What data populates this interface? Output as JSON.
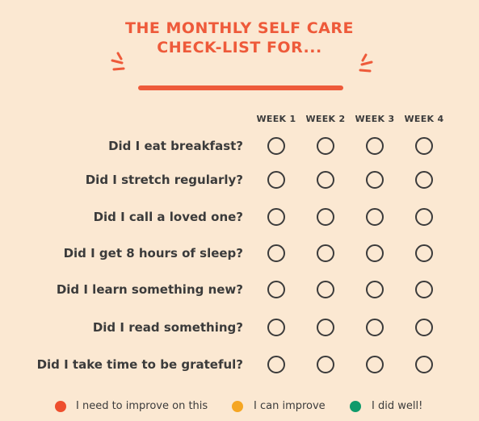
{
  "title": {
    "line1": "THE MONTHLY SELF CARE",
    "line2": "CHECK-LIST FOR..."
  },
  "colors": {
    "accent": "#ee5a3a",
    "background": "#fbe8d2",
    "text": "#3b3b3b",
    "needs_improvement": "#ee4f2e",
    "can_improve": "#f5a623",
    "did_well": "#0f9a6b"
  },
  "weeks": [
    "WEEK 1",
    "WEEK 2",
    "WEEK 3",
    "WEEK 4"
  ],
  "questions": [
    "Did I eat breakfast?",
    "Did I stretch regularly?",
    "Did I call a loved one?",
    "Did I get 8 hours of sleep?",
    "Did I learn something new?",
    "Did I read something?",
    "Did I take time to be grateful?"
  ],
  "legend": [
    {
      "label": "I need to improve on this",
      "color": "#ee4f2e"
    },
    {
      "label": "I can improve",
      "color": "#f5a623"
    },
    {
      "label": "I did well!",
      "color": "#0f9a6b"
    }
  ]
}
